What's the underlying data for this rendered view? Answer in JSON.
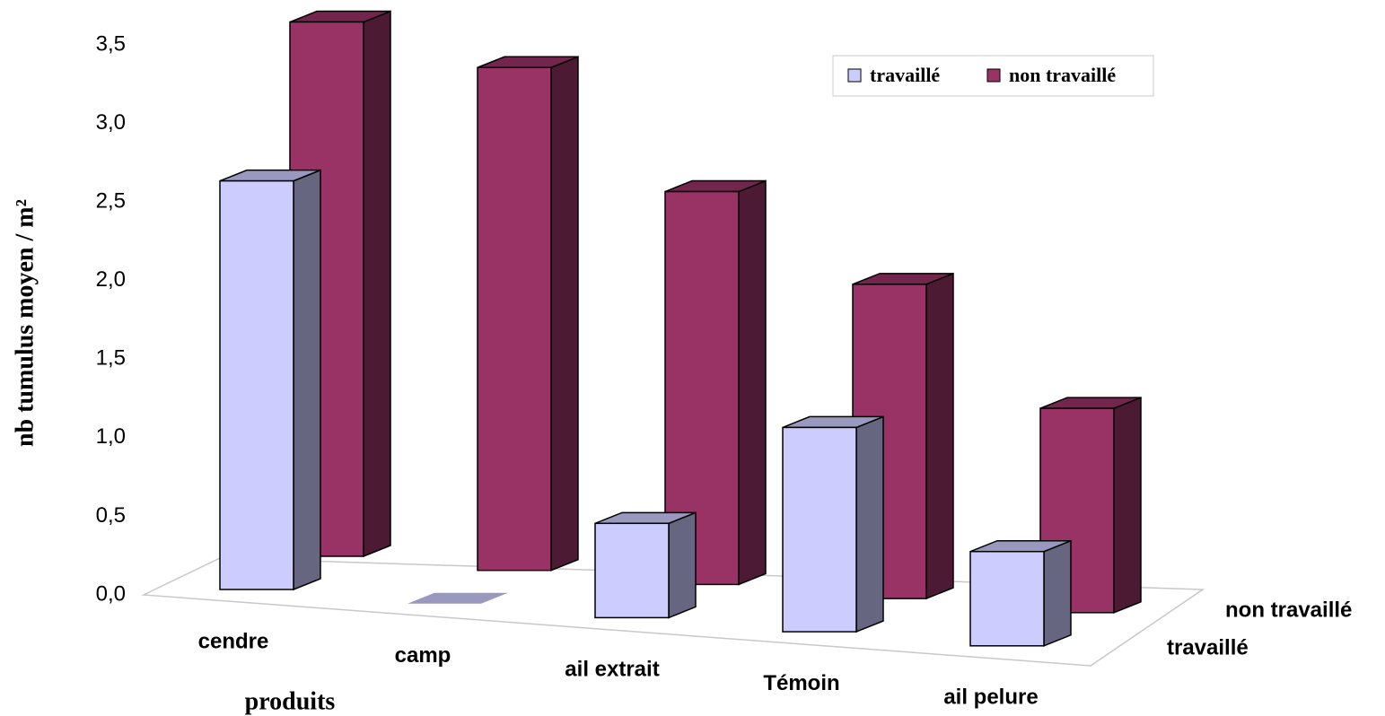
{
  "chart_data": {
    "type": "bar3d",
    "ylabel": "nb tumulus moyen / m²",
    "xlabel": "produits",
    "categories": [
      "cendre",
      "camp",
      "ail extrait",
      "Témoin",
      "ail pelure"
    ],
    "series": [
      {
        "name": "travaillé",
        "color": "#ccccff",
        "values": [
          2.6,
          0,
          0.6,
          1.3,
          0.6
        ]
      },
      {
        "name": "non travaillé",
        "color": "#993366",
        "values": [
          3.4,
          3.2,
          2.5,
          2.0,
          1.3
        ]
      }
    ],
    "ylim": [
      0,
      3.5
    ],
    "yticks": [
      {
        "value": 0,
        "label": "0,0"
      },
      {
        "value": 0.5,
        "label": "0,5"
      },
      {
        "value": 1,
        "label": "1,0"
      },
      {
        "value": 1.5,
        "label": "1,5"
      },
      {
        "value": 2,
        "label": "2,0"
      },
      {
        "value": 2.5,
        "label": "2,5"
      },
      {
        "value": 3,
        "label": "3,0"
      },
      {
        "value": 3.5,
        "label": "3,5"
      }
    ],
    "legend": "upper right"
  }
}
